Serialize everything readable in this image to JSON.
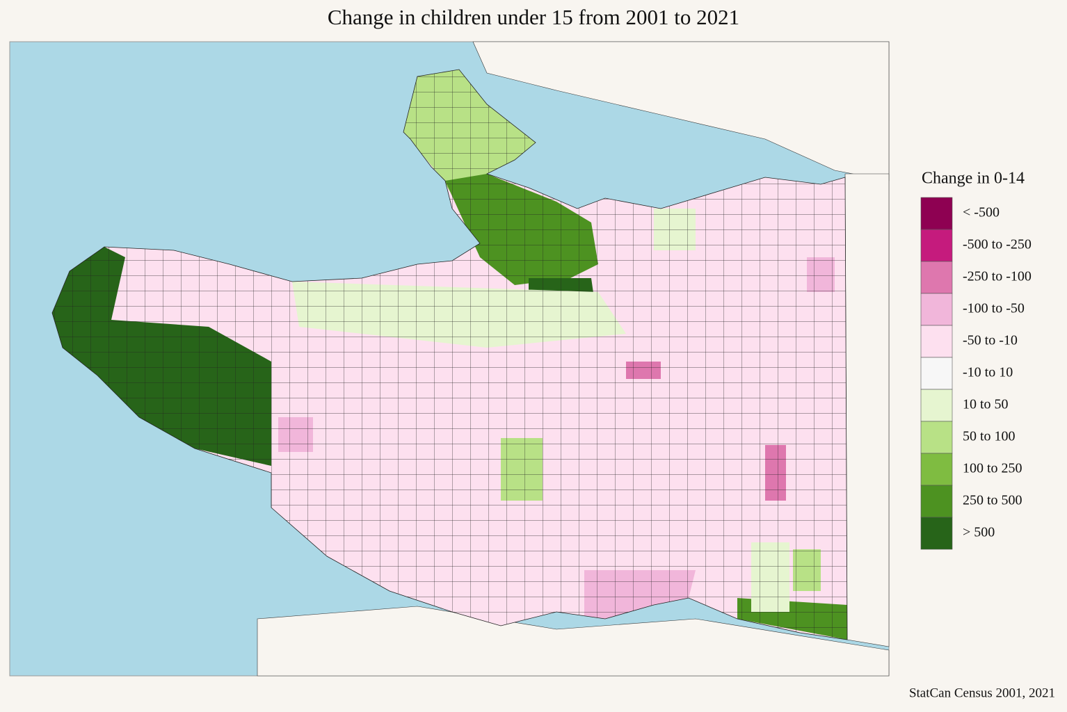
{
  "title": "Change in children under 15 from 2001 to 2021",
  "legend": {
    "title": "Change in 0-14",
    "items": [
      {
        "label": "< -500",
        "color": "#8e0152"
      },
      {
        "label": "-500 to -250",
        "color": "#c51b7d"
      },
      {
        "label": "-250 to -100",
        "color": "#de77ae"
      },
      {
        "label": "-100 to -50",
        "color": "#f1b6da"
      },
      {
        "label": "-50 to -10",
        "color": "#fde0ef"
      },
      {
        "label": "-10 to 10",
        "color": "#f7f7f7"
      },
      {
        "label": "10 to 50",
        "color": "#e6f5d0"
      },
      {
        "label": "50 to 100",
        "color": "#b8e186"
      },
      {
        "label": "100 to 250",
        "color": "#7fbc41"
      },
      {
        "label": "250 to 500",
        "color": "#4d9221"
      },
      {
        "label": "> 500",
        "color": "#276419"
      }
    ]
  },
  "source": "StatCan Census 2001, 2021"
}
